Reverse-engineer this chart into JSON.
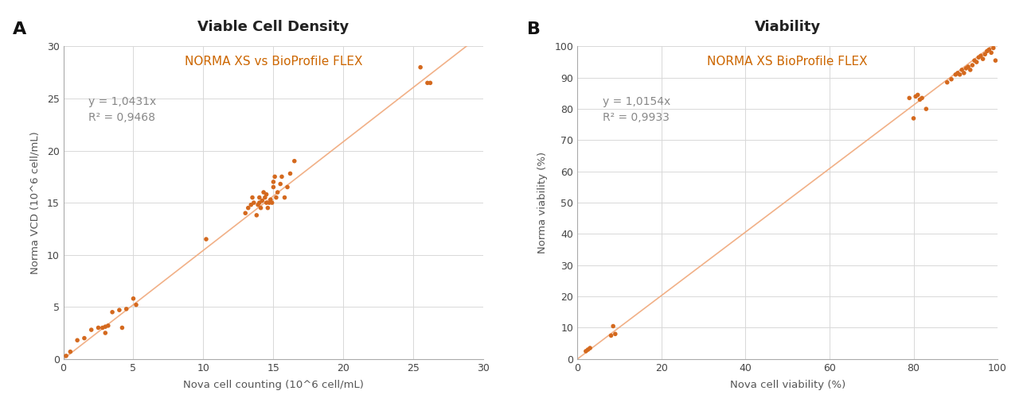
{
  "plot_A": {
    "title": "Viable Cell Density",
    "subtitle": "NORMA XS vs BioProfile FLEX",
    "xlabel": "Nova cell counting (10^6 cell/mL)",
    "ylabel": "Norma VCD (10^6 cell/mL)",
    "label": "A",
    "equation": "y = 1,0431x",
    "r2": "R² = 0,9468",
    "slope": 1.0431,
    "xlim": [
      0,
      30
    ],
    "ylim": [
      0,
      30
    ],
    "xticks": [
      0,
      5,
      10,
      15,
      20,
      25,
      30
    ],
    "yticks": [
      0,
      5,
      10,
      15,
      20,
      25,
      30
    ],
    "scatter_x": [
      0.2,
      0.5,
      1.0,
      1.5,
      2.0,
      2.5,
      2.8,
      3.0,
      3.0,
      3.2,
      3.5,
      4.0,
      4.2,
      4.5,
      5.0,
      5.2,
      10.2,
      13.0,
      13.2,
      13.4,
      13.5,
      13.6,
      13.8,
      13.9,
      14.0,
      14.0,
      14.1,
      14.2,
      14.3,
      14.4,
      14.5,
      14.5,
      14.6,
      14.7,
      14.8,
      14.9,
      15.0,
      15.0,
      15.1,
      15.2,
      15.3,
      15.5,
      15.6,
      15.8,
      16.0,
      16.2,
      16.5,
      25.5,
      26.0,
      26.2
    ],
    "scatter_y": [
      0.3,
      0.7,
      1.8,
      2.0,
      2.8,
      3.0,
      3.0,
      3.1,
      2.5,
      3.2,
      4.5,
      4.7,
      3.0,
      4.8,
      5.8,
      5.2,
      11.5,
      14.0,
      14.5,
      14.8,
      15.5,
      15.0,
      13.8,
      14.8,
      15.0,
      15.5,
      14.5,
      15.2,
      16.0,
      15.5,
      15.0,
      15.8,
      14.5,
      15.0,
      15.3,
      15.0,
      16.5,
      17.0,
      17.5,
      15.5,
      16.0,
      16.8,
      17.5,
      15.5,
      16.5,
      17.8,
      19.0,
      28.0,
      26.5,
      26.5
    ]
  },
  "plot_B": {
    "title": "Viability",
    "subtitle": "NORMA XS BioProfile FLEX",
    "xlabel": "Nova cell viability (%)",
    "ylabel": "Norma viability (%)",
    "label": "B",
    "equation": "y = 1,0154x",
    "r2": "R² = 0,9933",
    "slope": 1.0154,
    "xlim": [
      0,
      100
    ],
    "ylim": [
      0,
      100
    ],
    "xticks": [
      0,
      20,
      40,
      60,
      80,
      100
    ],
    "yticks": [
      0,
      10,
      20,
      30,
      40,
      50,
      60,
      70,
      80,
      90,
      100
    ],
    "scatter_x": [
      2.0,
      2.5,
      3.0,
      8.0,
      8.5,
      9.0,
      79.0,
      80.0,
      80.5,
      81.0,
      81.5,
      82.0,
      83.0,
      88.0,
      89.0,
      90.0,
      90.5,
      91.0,
      91.5,
      92.0,
      92.5,
      93.0,
      93.5,
      94.0,
      94.5,
      95.0,
      95.5,
      96.0,
      96.5,
      97.0,
      97.5,
      98.0,
      98.5,
      99.0,
      99.5
    ],
    "scatter_y": [
      2.5,
      3.0,
      3.5,
      7.5,
      10.5,
      8.0,
      83.5,
      77.0,
      84.0,
      84.5,
      83.0,
      83.5,
      80.0,
      88.5,
      89.5,
      91.0,
      91.5,
      91.0,
      92.5,
      91.5,
      93.0,
      93.5,
      92.5,
      94.0,
      95.5,
      95.0,
      96.5,
      97.0,
      96.0,
      97.5,
      98.5,
      99.0,
      98.0,
      99.5,
      95.5
    ]
  },
  "dot_color": "#d4691e",
  "line_color": "#f0a87a",
  "subtitle_color": "#cc6600",
  "eq_color": "#888888",
  "background_color": "#ffffff",
  "grid_color": "#d8d8d8",
  "title_color": "#222222",
  "axis_color": "#aaaaaa",
  "tick_color": "#444444",
  "label_color": "#555555",
  "title_fontsize": 13,
  "subtitle_fontsize": 11,
  "label_fontsize": 9.5,
  "tick_fontsize": 9,
  "eq_fontsize": 10,
  "panel_label_fontsize": 16
}
